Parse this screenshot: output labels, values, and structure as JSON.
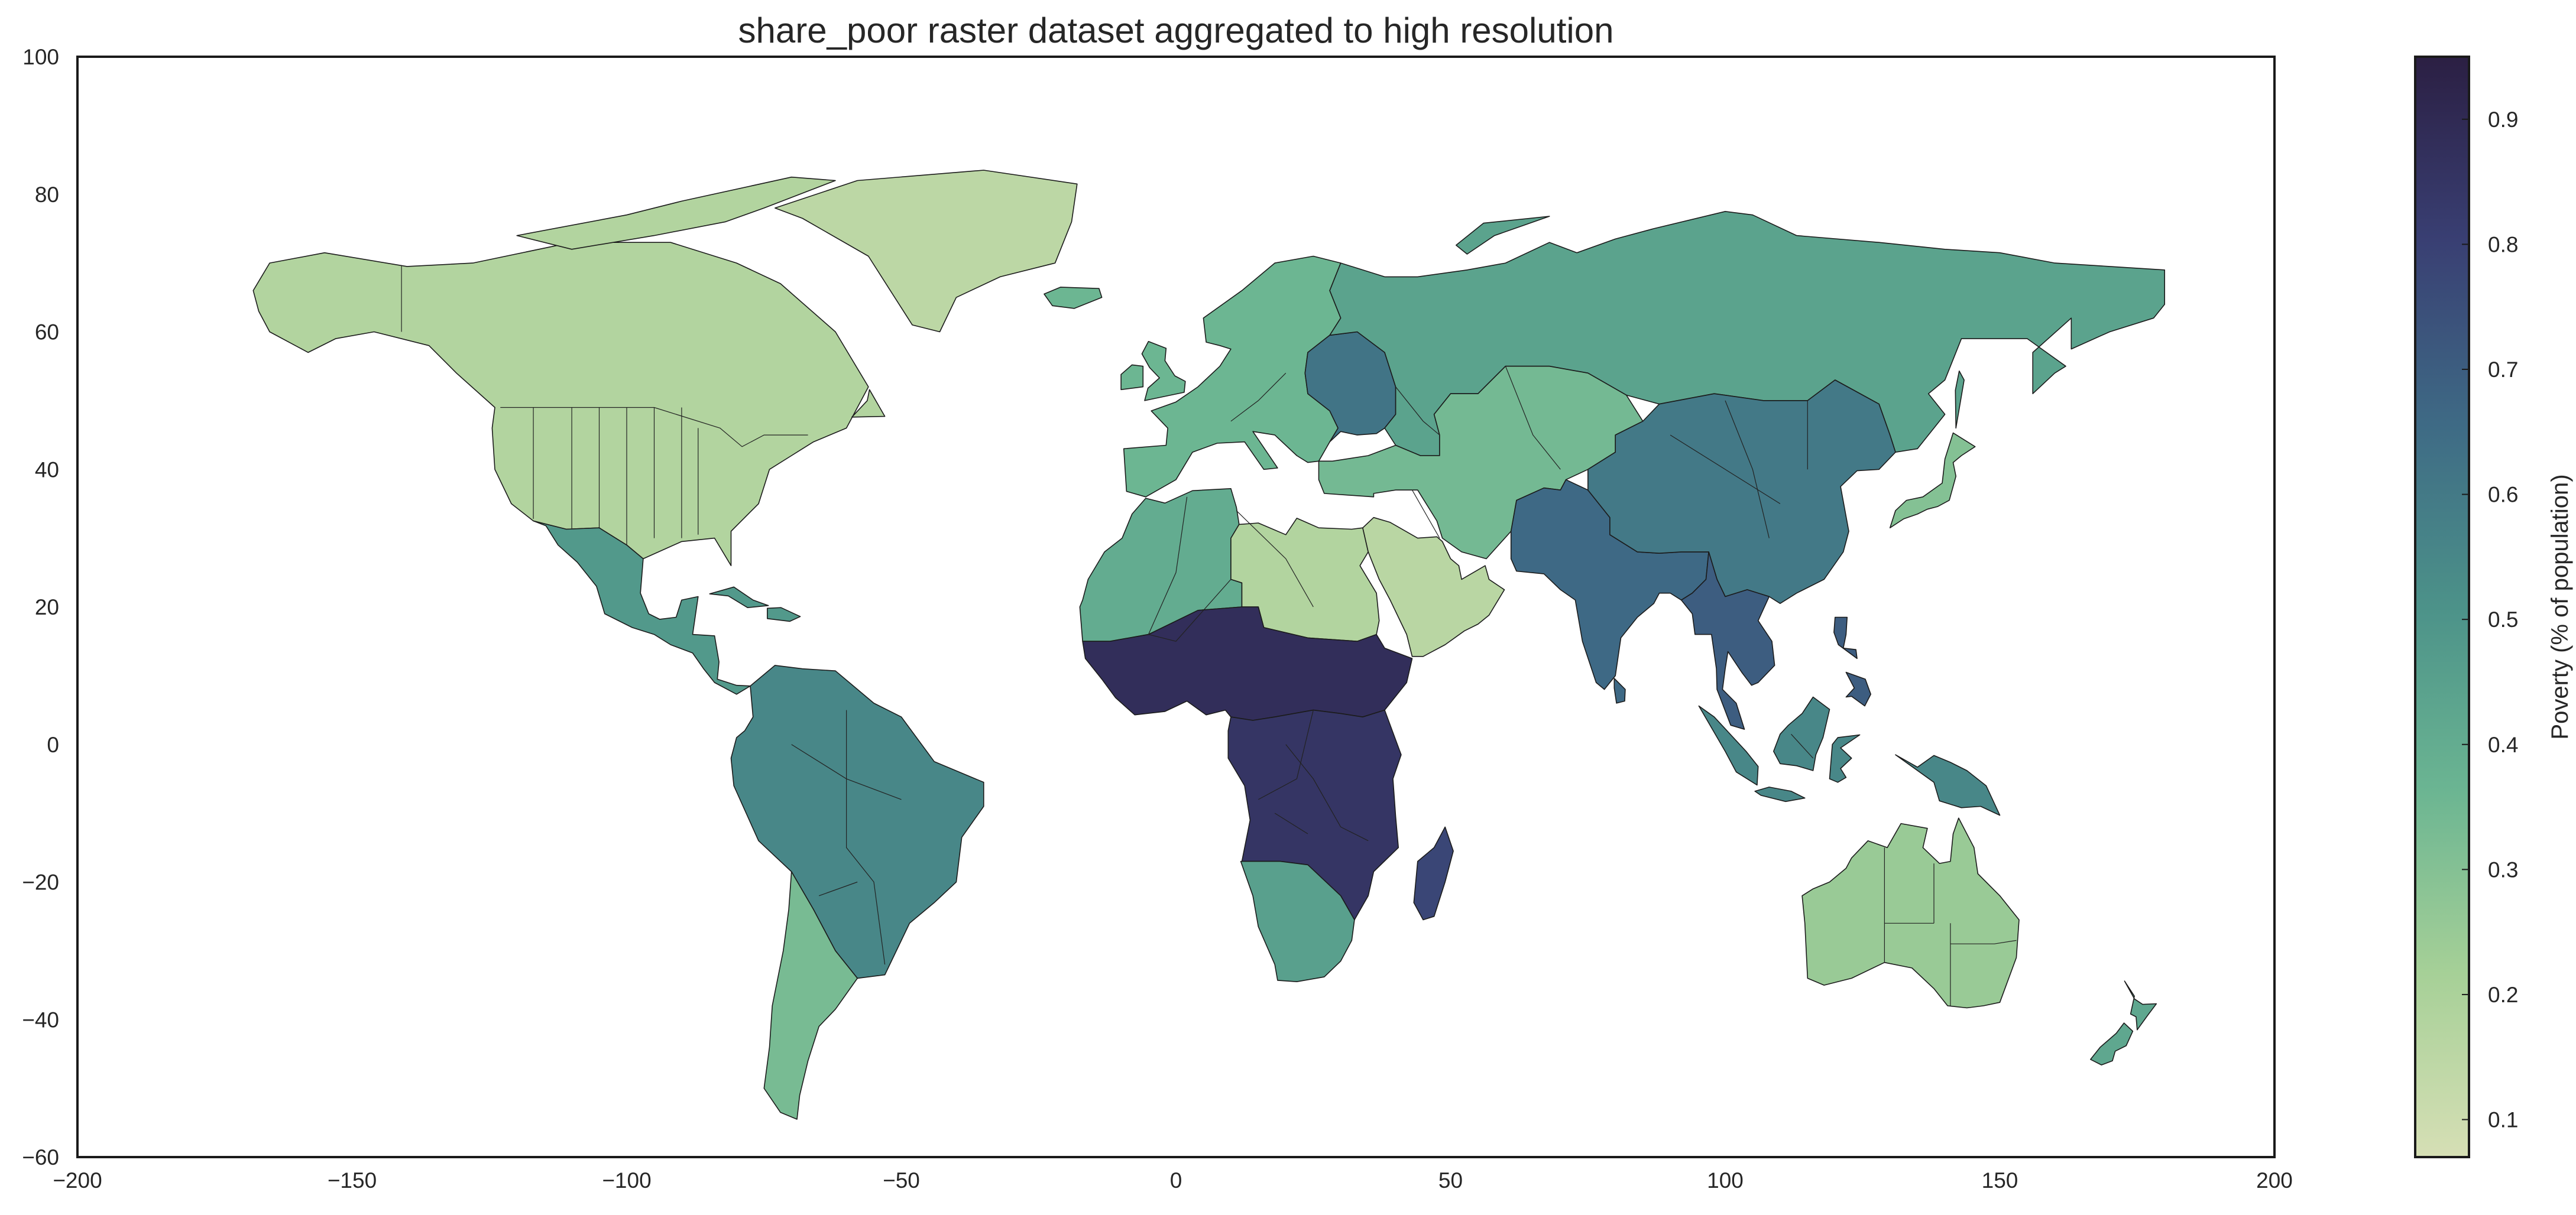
{
  "title": "share_poor raster dataset aggregated to high resolution",
  "colorbar": {
    "label": "Poverty (% of population)",
    "range": [
      0.07,
      0.95
    ],
    "ticks": [
      "0.9",
      "0.8",
      "0.7",
      "0.6",
      "0.5",
      "0.4",
      "0.3",
      "0.2",
      "0.1"
    ],
    "colors": [
      "#d6dfb5",
      "#a6d097",
      "#6bb592",
      "#4c9289",
      "#3e6a85",
      "#393f73",
      "#2b1f43"
    ]
  },
  "x_axis": {
    "range": [
      -200,
      200
    ],
    "ticks": [
      "−200",
      "−150",
      "−100",
      "−50",
      "0",
      "50",
      "100",
      "150",
      "200"
    ]
  },
  "y_axis": {
    "range": [
      -60,
      100
    ],
    "ticks": [
      "100",
      "80",
      "60",
      "40",
      "20",
      "0",
      "−20",
      "−40",
      "−60"
    ]
  },
  "regions": [
    {
      "name": "north-america",
      "value": 0.18
    },
    {
      "name": "greenland",
      "value": 0.15
    },
    {
      "name": "mexico-central-america",
      "value": 0.48
    },
    {
      "name": "south-america-north",
      "value": 0.55
    },
    {
      "name": "south-america-south",
      "value": 0.33
    },
    {
      "name": "europe-west",
      "value": 0.36
    },
    {
      "name": "europe-east",
      "value": 0.62
    },
    {
      "name": "russia",
      "value": 0.44
    },
    {
      "name": "north-africa",
      "value": 0.4
    },
    {
      "name": "sahara",
      "value": 0.18
    },
    {
      "name": "west-africa",
      "value": 0.88
    },
    {
      "name": "central-africa",
      "value": 0.85
    },
    {
      "name": "southern-africa",
      "value": 0.45
    },
    {
      "name": "madagascar",
      "value": 0.78
    },
    {
      "name": "arabia",
      "value": 0.16
    },
    {
      "name": "central-asia",
      "value": 0.34
    },
    {
      "name": "south-asia",
      "value": 0.66
    },
    {
      "name": "china",
      "value": 0.6
    },
    {
      "name": "southeast-asia",
      "value": 0.7
    },
    {
      "name": "japan",
      "value": 0.3
    },
    {
      "name": "indonesia",
      "value": 0.55
    },
    {
      "name": "australia",
      "value": 0.25
    },
    {
      "name": "new-zealand",
      "value": 0.42
    }
  ]
}
